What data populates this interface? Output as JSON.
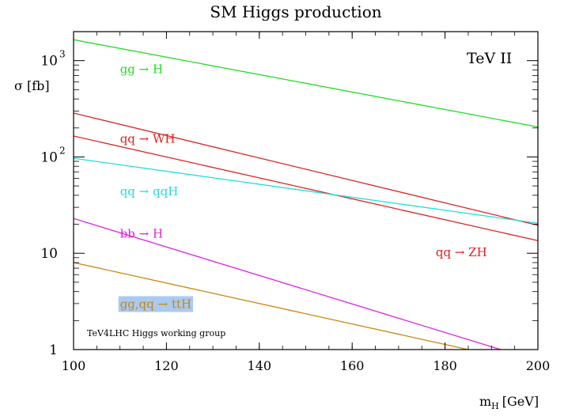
{
  "chart_data": {
    "type": "line",
    "title": "SM Higgs production",
    "corner_label": "TeV II",
    "credit": "TeV4LHC Higgs working group",
    "xlabel": "m",
    "xlabel_sub": "H",
    "xlabel_unit": "[GeV]",
    "ylabel": "σ [fb]",
    "xlim": [
      100,
      200
    ],
    "ylim": [
      1,
      2000
    ],
    "yscale": "log",
    "grid": false,
    "x_ticks": [
      "100",
      "120",
      "140",
      "160",
      "180",
      "200"
    ],
    "y_ticks": [
      {
        "value": 1,
        "base": "1",
        "exp": ""
      },
      {
        "value": 10,
        "base": "10",
        "exp": ""
      },
      {
        "value": 100,
        "base": "10",
        "exp": "2"
      },
      {
        "value": 1000,
        "base": "10",
        "exp": "3"
      }
    ],
    "series": [
      {
        "name": "gg → H",
        "color": "#22dd22",
        "points": [
          [
            100,
            1650
          ],
          [
            200,
            205
          ]
        ],
        "label_at": [
          110,
          740
        ]
      },
      {
        "name": "qq → WH",
        "color": "#dd2222",
        "points": [
          [
            100,
            285
          ],
          [
            200,
            19.5
          ]
        ],
        "label_at": [
          110,
          140
        ]
      },
      {
        "name": "qq → ZH",
        "color": "#dd2222",
        "points": [
          [
            100,
            165
          ],
          [
            200,
            13.5
          ]
        ],
        "label_at": [
          178,
          9.3
        ]
      },
      {
        "name": "qq → qqH",
        "color": "#22dddd",
        "points": [
          [
            100,
            97
          ],
          [
            200,
            20.5
          ]
        ],
        "label_at": [
          110,
          40
        ]
      },
      {
        "name": "bb → H",
        "color": "#dd22dd",
        "points": [
          [
            100,
            23
          ],
          [
            192,
            1
          ]
        ],
        "label_at": [
          110,
          14.5
        ]
      },
      {
        "name": "gg,qq → ttH",
        "color": "#c8860d",
        "points": [
          [
            100,
            8
          ],
          [
            185,
            1
          ]
        ],
        "label_at": [
          110,
          2.7
        ],
        "label_highlight": "#aacaf0"
      }
    ]
  }
}
